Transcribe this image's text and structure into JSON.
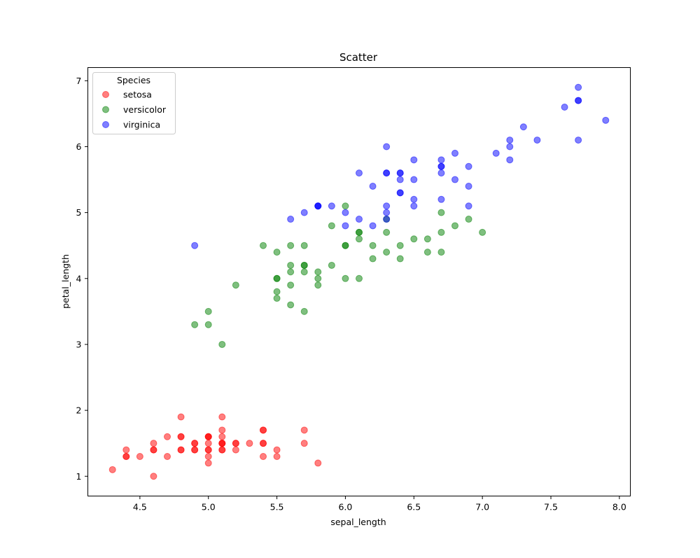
{
  "chart_data": {
    "type": "scatter",
    "title": "Scatter",
    "xlabel": "sepal_length",
    "ylabel": "petal_length",
    "xlim": [
      4.12,
      8.08
    ],
    "ylim": [
      0.7,
      7.2
    ],
    "xticks": [
      "4.5",
      "5.0",
      "5.5",
      "6.0",
      "6.5",
      "7.0",
      "7.5",
      "8.0"
    ],
    "yticks": [
      "1",
      "2",
      "3",
      "4",
      "5",
      "6",
      "7"
    ],
    "grid": false,
    "legend": {
      "title": "Species",
      "position": "top-left"
    },
    "series": [
      {
        "name": "setosa",
        "color": "#ff0000",
        "x": [
          5.1,
          4.9,
          4.7,
          4.6,
          5.0,
          5.4,
          4.6,
          5.0,
          4.4,
          4.9,
          5.4,
          4.8,
          4.8,
          4.3,
          5.8,
          5.7,
          5.4,
          5.1,
          5.7,
          5.1,
          5.4,
          5.1,
          4.6,
          5.1,
          4.8,
          5.0,
          5.0,
          5.2,
          5.2,
          4.7,
          4.8,
          5.4,
          5.2,
          5.5,
          4.9,
          5.0,
          5.5,
          4.9,
          4.4,
          5.1,
          5.0,
          4.5,
          4.4,
          5.0,
          5.1,
          4.8,
          5.1,
          4.6,
          5.3,
          5.0
        ],
        "y": [
          1.4,
          1.4,
          1.3,
          1.5,
          1.4,
          1.7,
          1.4,
          1.5,
          1.4,
          1.5,
          1.5,
          1.6,
          1.4,
          1.1,
          1.2,
          1.5,
          1.3,
          1.4,
          1.7,
          1.5,
          1.7,
          1.5,
          1.0,
          1.7,
          1.9,
          1.6,
          1.6,
          1.5,
          1.4,
          1.6,
          1.6,
          1.5,
          1.5,
          1.4,
          1.5,
          1.2,
          1.3,
          1.4,
          1.3,
          1.5,
          1.3,
          1.3,
          1.3,
          1.6,
          1.9,
          1.4,
          1.6,
          1.4,
          1.5,
          1.4
        ]
      },
      {
        "name": "versicolor",
        "color": "#008000",
        "x": [
          7.0,
          6.4,
          6.9,
          5.5,
          6.5,
          5.7,
          6.3,
          4.9,
          6.6,
          5.2,
          5.0,
          5.9,
          6.0,
          6.1,
          5.6,
          6.7,
          5.6,
          5.8,
          6.2,
          5.6,
          5.9,
          6.1,
          6.3,
          6.1,
          6.4,
          6.6,
          6.8,
          6.7,
          6.0,
          5.7,
          5.5,
          5.5,
          5.8,
          6.0,
          5.4,
          6.0,
          6.7,
          6.3,
          5.6,
          5.5,
          5.5,
          6.1,
          5.8,
          5.0,
          5.6,
          5.7,
          5.7,
          6.2,
          5.1,
          5.7
        ],
        "y": [
          4.7,
          4.5,
          4.9,
          4.0,
          4.6,
          4.5,
          4.7,
          3.3,
          4.6,
          3.9,
          3.5,
          4.2,
          4.0,
          4.7,
          3.6,
          4.4,
          4.5,
          4.1,
          4.5,
          3.9,
          4.8,
          4.0,
          4.9,
          4.7,
          4.3,
          4.4,
          4.8,
          5.0,
          4.5,
          3.5,
          3.8,
          3.7,
          3.9,
          5.1,
          4.5,
          4.5,
          4.7,
          4.4,
          4.1,
          4.0,
          4.4,
          4.6,
          4.0,
          3.3,
          4.2,
          4.2,
          4.2,
          4.3,
          3.0,
          4.1
        ]
      },
      {
        "name": "virginica",
        "color": "#0000ff",
        "x": [
          6.3,
          5.8,
          7.1,
          6.3,
          6.5,
          7.6,
          4.9,
          7.3,
          6.7,
          7.2,
          6.5,
          6.4,
          6.8,
          5.7,
          5.8,
          6.4,
          6.5,
          7.7,
          7.7,
          6.0,
          6.9,
          5.6,
          7.7,
          6.3,
          6.7,
          7.2,
          6.2,
          6.1,
          6.4,
          7.2,
          7.4,
          7.9,
          6.4,
          6.3,
          6.1,
          7.7,
          6.3,
          6.4,
          6.0,
          6.9,
          6.7,
          6.9,
          5.8,
          6.8,
          6.7,
          6.7,
          6.3,
          6.5,
          6.2,
          5.9
        ],
        "y": [
          6.0,
          5.1,
          5.9,
          5.6,
          5.8,
          6.6,
          4.5,
          6.3,
          5.8,
          6.1,
          5.1,
          5.3,
          5.5,
          5.0,
          5.1,
          5.3,
          5.5,
          6.7,
          6.9,
          5.0,
          5.7,
          4.9,
          6.7,
          4.9,
          5.7,
          6.0,
          4.8,
          4.9,
          5.6,
          5.8,
          6.1,
          6.4,
          5.6,
          5.1,
          5.6,
          6.1,
          5.6,
          5.5,
          4.8,
          5.4,
          5.6,
          5.1,
          5.1,
          5.9,
          5.7,
          5.2,
          5.0,
          5.2,
          5.4,
          5.1
        ]
      }
    ]
  }
}
